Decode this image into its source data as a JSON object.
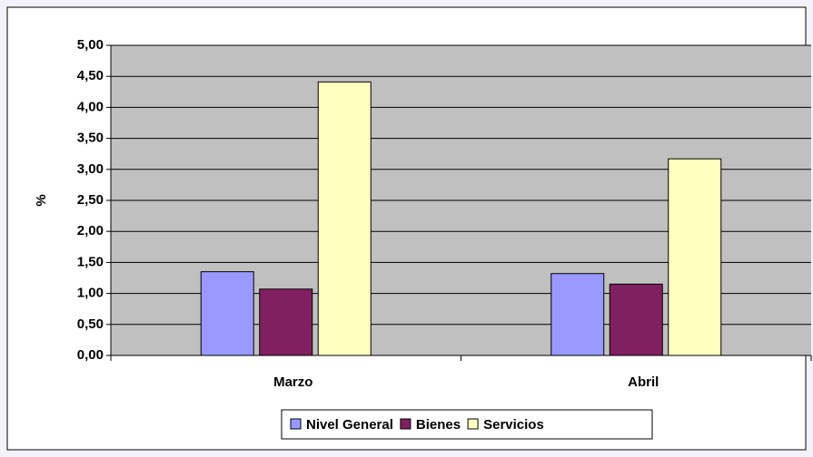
{
  "chart_data": {
    "type": "bar",
    "categories": [
      "Marzo",
      "Abril"
    ],
    "series": [
      {
        "name": "Nivel General",
        "color": "#9999ff",
        "values": [
          1.35,
          1.32
        ]
      },
      {
        "name": "Bienes",
        "color": "#802060",
        "values": [
          1.07,
          1.15
        ]
      },
      {
        "name": "Servicios",
        "color": "#ffffc0",
        "values": [
          4.41,
          3.17
        ]
      }
    ],
    "ylabel": "%",
    "ylim": [
      0,
      5
    ],
    "yticks": [
      {
        "value": 0,
        "label": "0,00"
      },
      {
        "value": 0.5,
        "label": "0,50"
      },
      {
        "value": 1,
        "label": "1,00"
      },
      {
        "value": 1.5,
        "label": "1,50"
      },
      {
        "value": 2,
        "label": "2,00"
      },
      {
        "value": 2.5,
        "label": "2,50"
      },
      {
        "value": 3,
        "label": "3,00"
      },
      {
        "value": 3.5,
        "label": "3,50"
      },
      {
        "value": 4,
        "label": "4,00"
      },
      {
        "value": 4.5,
        "label": "4,50"
      },
      {
        "value": 5,
        "label": "5,00"
      }
    ],
    "grid": true,
    "legend": "bottom"
  }
}
